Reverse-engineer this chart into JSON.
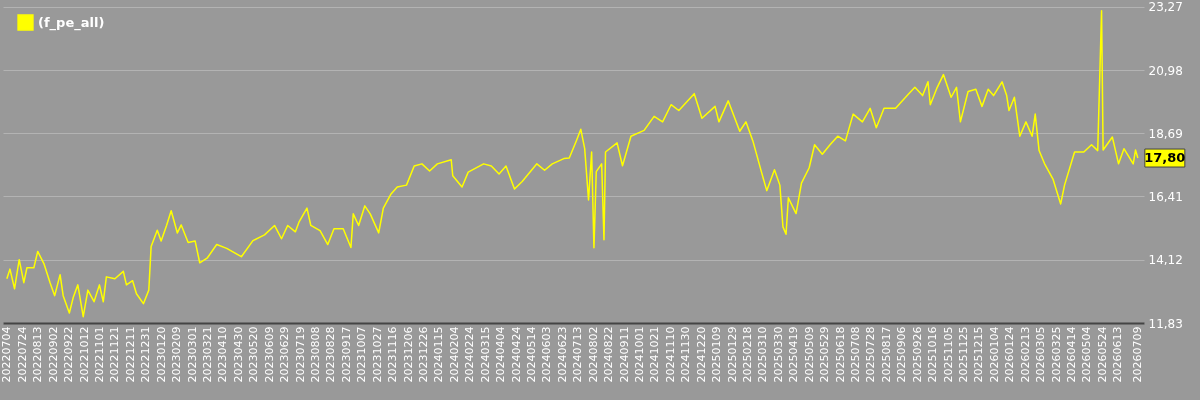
{
  "chart_data": {
    "type": "line",
    "x": [
      "2022-07-04",
      "2022-07-08",
      "2022-07-14",
      "2022-07-20",
      "2022-07-26",
      "2022-07-30",
      "2022-08-08",
      "2022-08-13",
      "2022-08-21",
      "2022-08-29",
      "2022-09-04",
      "2022-09-11",
      "2022-09-15",
      "2022-09-23",
      "2022-09-28",
      "2022-10-04",
      "2022-10-11",
      "2022-10-17",
      "2022-10-25",
      "2022-11-01",
      "2022-11-06",
      "2022-11-10",
      "2022-11-21",
      "2022-12-02",
      "2022-12-06",
      "2022-12-14",
      "2022-12-19",
      "2022-12-28",
      "2023-01-04",
      "2023-01-07",
      "2023-01-15",
      "2023-01-20",
      "2023-01-27",
      "2023-02-02",
      "2023-02-10",
      "2023-02-15",
      "2023-02-24",
      "2023-03-05",
      "2023-03-11",
      "2023-03-21",
      "2023-04-02",
      "2023-04-15",
      "2023-05-04",
      "2023-05-19",
      "2023-06-03",
      "2023-06-16",
      "2023-06-25",
      "2023-07-03",
      "2023-07-13",
      "2023-07-18",
      "2023-07-28",
      "2023-08-02",
      "2023-08-14",
      "2023-08-24",
      "2023-09-01",
      "2023-09-13",
      "2023-09-23",
      "2023-09-26",
      "2023-10-03",
      "2023-10-11",
      "2023-10-18",
      "2023-10-29",
      "2023-11-04",
      "2023-11-14",
      "2023-11-22",
      "2023-12-04",
      "2023-12-14",
      "2023-12-24",
      "2024-01-03",
      "2024-01-13",
      "2024-01-31",
      "2024-02-02",
      "2024-02-14",
      "2024-02-22",
      "2024-03-13",
      "2024-03-23",
      "2024-04-02",
      "2024-04-11",
      "2024-04-22",
      "2024-05-02",
      "2024-05-21",
      "2024-05-31",
      "2024-06-10",
      "2024-06-25",
      "2024-07-02",
      "2024-07-11",
      "2024-07-17",
      "2024-07-22",
      "2024-07-27",
      "2024-07-31",
      "2024-08-03",
      "2024-08-06",
      "2024-08-13",
      "2024-08-16",
      "2024-08-18",
      "2024-09-02",
      "2024-09-09",
      "2024-09-20",
      "2024-10-07",
      "2024-10-20",
      "2024-10-31",
      "2024-11-11",
      "2024-11-21",
      "2024-12-11",
      "2024-12-21",
      "2025-01-07",
      "2025-01-12",
      "2025-01-24",
      "2025-02-08",
      "2025-02-16",
      "2025-02-25",
      "2025-03-08",
      "2025-03-15",
      "2025-03-25",
      "2025-04-01",
      "2025-04-05",
      "2025-04-09",
      "2025-04-12",
      "2025-04-22",
      "2025-04-29",
      "2025-05-09",
      "2025-05-16",
      "2025-05-26",
      "2025-06-05",
      "2025-06-15",
      "2025-06-25",
      "2025-07-05",
      "2025-07-17",
      "2025-07-27",
      "2025-08-04",
      "2025-08-14",
      "2025-08-29",
      "2025-09-13",
      "2025-09-23",
      "2025-10-03",
      "2025-10-10",
      "2025-10-13",
      "2025-10-22",
      "2025-10-30",
      "2025-11-09",
      "2025-11-16",
      "2025-11-21",
      "2025-12-01",
      "2025-12-11",
      "2025-12-19",
      "2025-12-27",
      "2026-01-03",
      "2026-01-14",
      "2026-01-20",
      "2026-01-23",
      "2026-01-30",
      "2026-02-06",
      "2026-02-14",
      "2026-02-22",
      "2026-02-26",
      "2026-03-03",
      "2026-03-10",
      "2026-03-21",
      "2026-03-31",
      "2026-04-05",
      "2026-04-18",
      "2026-04-30",
      "2026-05-10",
      "2026-05-18",
      "2026-05-23",
      "2026-05-25",
      "2026-06-06",
      "2026-06-14",
      "2026-06-21",
      "2026-07-03",
      "2026-07-06",
      "2026-07-09"
    ],
    "series": [
      {
        "name": "(f_pe_all)",
        "color": "#ffff00",
        "values": [
          13.43,
          13.78,
          13.07,
          14.12,
          13.29,
          13.83,
          13.83,
          14.42,
          13.98,
          13.29,
          12.82,
          13.58,
          12.82,
          12.19,
          12.75,
          13.21,
          12.06,
          13.02,
          12.6,
          13.21,
          12.6,
          13.5,
          13.43,
          13.7,
          13.21,
          13.36,
          12.89,
          12.53,
          13.02,
          14.6,
          15.19,
          14.8,
          15.36,
          15.89,
          15.09,
          15.38,
          14.74,
          14.8,
          14.01,
          14.19,
          14.67,
          14.53,
          14.23,
          14.81,
          15.02,
          15.36,
          14.88,
          15.36,
          15.13,
          15.5,
          15.99,
          15.36,
          15.17,
          14.67,
          15.24,
          15.24,
          14.56,
          15.78,
          15.36,
          16.07,
          15.78,
          15.09,
          15.99,
          16.5,
          16.75,
          16.82,
          17.51,
          17.59,
          17.33,
          17.59,
          17.74,
          17.16,
          16.75,
          17.29,
          17.59,
          17.51,
          17.22,
          17.51,
          16.68,
          16.95,
          17.59,
          17.36,
          17.59,
          17.78,
          17.8,
          18.41,
          18.84,
          18.14,
          16.28,
          18.02,
          14.55,
          17.31,
          17.59,
          14.84,
          18.02,
          18.35,
          17.52,
          18.59,
          18.8,
          19.31,
          19.11,
          19.73,
          19.52,
          20.13,
          19.24,
          19.67,
          19.11,
          19.87,
          18.77,
          19.11,
          18.42,
          17.31,
          16.62,
          17.38,
          16.82,
          15.31,
          15.04,
          16.36,
          15.79,
          16.89,
          17.45,
          18.28,
          17.94,
          18.28,
          18.59,
          18.42,
          19.39,
          19.11,
          19.6,
          18.9,
          19.6,
          19.6,
          20.06,
          20.36,
          20.06,
          20.56,
          19.73,
          20.36,
          20.82,
          20.0,
          20.36,
          19.11,
          20.21,
          20.29,
          19.67,
          20.29,
          20.06,
          20.56,
          20.06,
          19.52,
          20.0,
          18.59,
          19.11,
          18.59,
          19.39,
          18.07,
          17.6,
          17.04,
          16.14,
          16.82,
          18.02,
          18.02,
          18.28,
          18.07,
          23.13,
          18.09,
          18.56,
          17.59,
          18.14,
          17.59,
          18.09,
          17.8
        ]
      }
    ],
    "xlim": [
      "2022-06-29",
      "2026-07-17"
    ],
    "ylim": [
      11.83,
      23.52
    ],
    "yticks": [
      {
        "value": 11.83,
        "label": "11,83"
      },
      {
        "value": 14.12,
        "label": "14,12"
      },
      {
        "value": 16.41,
        "label": "16,41"
      },
      {
        "value": 18.69,
        "label": "18,69"
      },
      {
        "value": 20.98,
        "label": "20,98"
      },
      {
        "value": 23.27,
        "label": "23,27"
      }
    ],
    "xticks": [
      {
        "value": "2022-07-04",
        "label": "20220704"
      },
      {
        "value": "2022-07-24",
        "label": "20220724"
      },
      {
        "value": "2022-08-13",
        "label": "20220813"
      },
      {
        "value": "2022-09-02",
        "label": "20220902"
      },
      {
        "value": "2022-09-22",
        "label": "20220922"
      },
      {
        "value": "2022-10-12",
        "label": "20221012"
      },
      {
        "value": "2022-11-01",
        "label": "20221101"
      },
      {
        "value": "2022-11-21",
        "label": "20221121"
      },
      {
        "value": "2022-12-11",
        "label": "20221211"
      },
      {
        "value": "2022-12-31",
        "label": "20221231"
      },
      {
        "value": "2023-01-20",
        "label": "20230120"
      },
      {
        "value": "2023-02-09",
        "label": "20230209"
      },
      {
        "value": "2023-03-01",
        "label": "20230301"
      },
      {
        "value": "2023-03-21",
        "label": "20230321"
      },
      {
        "value": "2023-04-10",
        "label": "20230410"
      },
      {
        "value": "2023-04-30",
        "label": "20230430"
      },
      {
        "value": "2023-05-20",
        "label": "20230520"
      },
      {
        "value": "2023-06-09",
        "label": "20230609"
      },
      {
        "value": "2023-06-29",
        "label": "20230629"
      },
      {
        "value": "2023-07-19",
        "label": "20230719"
      },
      {
        "value": "2023-08-08",
        "label": "20230808"
      },
      {
        "value": "2023-08-28",
        "label": "20230828"
      },
      {
        "value": "2023-09-17",
        "label": "20230917"
      },
      {
        "value": "2023-10-07",
        "label": "20231007"
      },
      {
        "value": "2023-10-27",
        "label": "20231027"
      },
      {
        "value": "2023-11-16",
        "label": "20231116"
      },
      {
        "value": "2023-12-06",
        "label": "20231206"
      },
      {
        "value": "2023-12-26",
        "label": "20231226"
      },
      {
        "value": "2024-01-15",
        "label": "20240115"
      },
      {
        "value": "2024-02-04",
        "label": "20240204"
      },
      {
        "value": "2024-02-24",
        "label": "20240224"
      },
      {
        "value": "2024-03-15",
        "label": "20240315"
      },
      {
        "value": "2024-04-04",
        "label": "20240404"
      },
      {
        "value": "2024-04-24",
        "label": "20240424"
      },
      {
        "value": "2024-05-14",
        "label": "20240514"
      },
      {
        "value": "2024-06-03",
        "label": "20240603"
      },
      {
        "value": "2024-06-23",
        "label": "20240623"
      },
      {
        "value": "2024-07-13",
        "label": "20240713"
      },
      {
        "value": "2024-08-02",
        "label": "20240802"
      },
      {
        "value": "2024-08-22",
        "label": "20240822"
      },
      {
        "value": "2024-09-11",
        "label": "20240911"
      },
      {
        "value": "2024-10-01",
        "label": "20241001"
      },
      {
        "value": "2024-10-21",
        "label": "20241021"
      },
      {
        "value": "2024-11-10",
        "label": "20241110"
      },
      {
        "value": "2024-11-30",
        "label": "20241130"
      },
      {
        "value": "2024-12-20",
        "label": "20241220"
      },
      {
        "value": "2025-01-09",
        "label": "20250109"
      },
      {
        "value": "2025-01-29",
        "label": "20250129"
      },
      {
        "value": "2025-02-18",
        "label": "20250218"
      },
      {
        "value": "2025-03-10",
        "label": "20250310"
      },
      {
        "value": "2025-03-30",
        "label": "20250330"
      },
      {
        "value": "2025-04-19",
        "label": "20250419"
      },
      {
        "value": "2025-05-09",
        "label": "20250509"
      },
      {
        "value": "2025-05-29",
        "label": "20250529"
      },
      {
        "value": "2025-06-18",
        "label": "20250618"
      },
      {
        "value": "2025-07-08",
        "label": "20250708"
      },
      {
        "value": "2025-07-28",
        "label": "20250728"
      },
      {
        "value": "2025-08-17",
        "label": "20250817"
      },
      {
        "value": "2025-09-06",
        "label": "20250906"
      },
      {
        "value": "2025-09-26",
        "label": "20250926"
      },
      {
        "value": "2025-10-16",
        "label": "20251016"
      },
      {
        "value": "2025-11-05",
        "label": "20251105"
      },
      {
        "value": "2025-11-25",
        "label": "20251125"
      },
      {
        "value": "2025-12-15",
        "label": "20251215"
      },
      {
        "value": "2026-01-04",
        "label": "20260104"
      },
      {
        "value": "2026-01-24",
        "label": "20260124"
      },
      {
        "value": "2026-02-13",
        "label": "20260213"
      },
      {
        "value": "2026-03-05",
        "label": "20260305"
      },
      {
        "value": "2026-03-25",
        "label": "20260325"
      },
      {
        "value": "2026-04-14",
        "label": "20260414"
      },
      {
        "value": "2026-05-04",
        "label": "20260504"
      },
      {
        "value": "2026-05-24",
        "label": "20260524"
      },
      {
        "value": "2026-06-13",
        "label": "20260613"
      },
      {
        "value": "2026-07-09",
        "label": "20260709"
      }
    ],
    "grid": "y",
    "legend": "top left",
    "annotations": [
      {
        "text": "17,80",
        "x": "2026-07-09",
        "y": 17.8
      }
    ]
  }
}
